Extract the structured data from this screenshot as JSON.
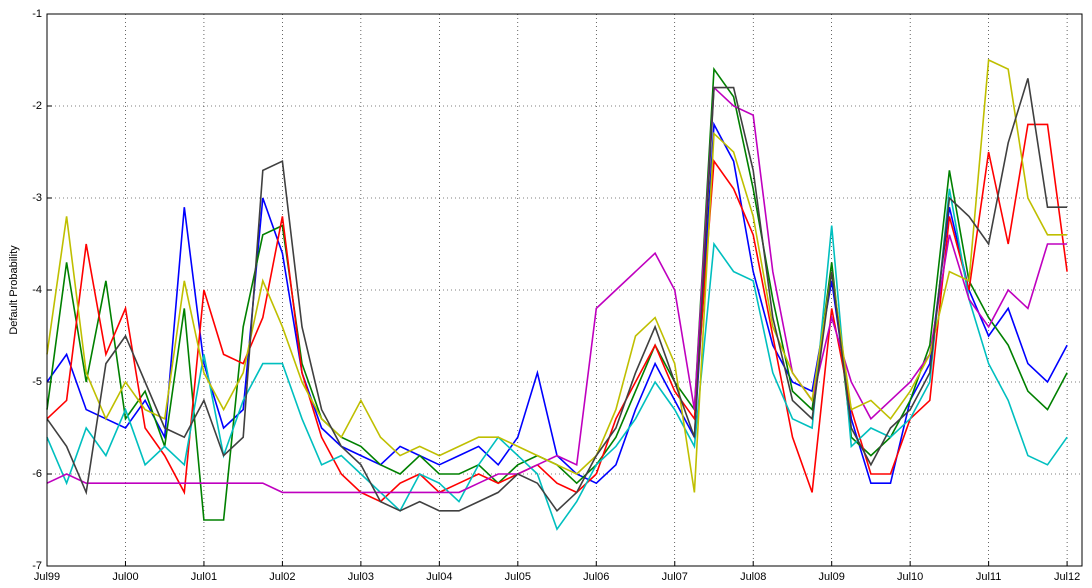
{
  "chart_data": {
    "type": "line",
    "y_label": "Default Probability",
    "x": [
      1999.5,
      1999.75,
      2000,
      2000.25,
      2000.5,
      2000.75,
      2001,
      2001.25,
      2001.5,
      2001.75,
      2002,
      2002.25,
      2002.5,
      2002.75,
      2003,
      2003.25,
      2003.5,
      2003.75,
      2004,
      2004.25,
      2004.5,
      2004.75,
      2005,
      2005.25,
      2005.5,
      2005.75,
      2006,
      2006.25,
      2006.5,
      2006.75,
      2007,
      2007.25,
      2007.5,
      2007.75,
      2008,
      2008.25,
      2008.5,
      2008.75,
      2009,
      2009.25,
      2009.5,
      2009.75,
      2010,
      2010.25,
      2010.5,
      2010.75,
      2011,
      2011.25,
      2011.5,
      2011.75,
      2012,
      2012.25,
      2012.5
    ],
    "series": [
      {
        "color": "#0000ff",
        "values": [
          -5.0,
          -4.7,
          -5.3,
          -5.4,
          -5.5,
          -5.2,
          -5.6,
          -3.1,
          -4.8,
          -5.5,
          -5.3,
          -3.0,
          -3.6,
          -4.9,
          -5.5,
          -5.7,
          -5.8,
          -5.9,
          -5.7,
          -5.8,
          -5.9,
          -5.8,
          -5.7,
          -5.9,
          -5.6,
          -4.9,
          -5.8,
          -6.0,
          -6.1,
          -5.9,
          -5.3,
          -4.8,
          -5.2,
          -5.6,
          -2.2,
          -2.6,
          -3.8,
          -4.6,
          -5.0,
          -5.1,
          -3.9,
          -5.4,
          -6.1,
          -6.1,
          -5.2,
          -4.8,
          -3.1,
          -4.0,
          -4.5,
          -4.2,
          -4.8,
          -5.0,
          -4.6
        ]
      },
      {
        "color": "#008000",
        "values": [
          -5.3,
          -3.7,
          -5.0,
          -3.9,
          -5.4,
          -5.1,
          -5.7,
          -4.2,
          -6.5,
          -6.5,
          -4.4,
          -3.4,
          -3.3,
          -4.8,
          -5.4,
          -5.6,
          -5.7,
          -5.9,
          -6.0,
          -5.8,
          -6.0,
          -6.0,
          -5.9,
          -6.1,
          -5.9,
          -5.8,
          -5.9,
          -6.1,
          -5.9,
          -5.6,
          -5.1,
          -4.6,
          -5.0,
          -5.3,
          -1.6,
          -1.9,
          -2.9,
          -4.1,
          -5.1,
          -5.3,
          -3.7,
          -5.6,
          -5.8,
          -5.6,
          -5.2,
          -4.6,
          -2.7,
          -3.9,
          -4.3,
          -4.6,
          -5.1,
          -5.3,
          -4.9
        ]
      },
      {
        "color": "#ff0000",
        "values": [
          -5.4,
          -5.2,
          -3.5,
          -4.7,
          -4.2,
          -5.5,
          -5.8,
          -6.2,
          -4.0,
          -4.7,
          -4.8,
          -4.3,
          -3.2,
          -4.9,
          -5.6,
          -6.0,
          -6.2,
          -6.3,
          -6.1,
          -6.0,
          -6.2,
          -6.1,
          -6.0,
          -6.1,
          -6.0,
          -5.9,
          -6.1,
          -6.2,
          -6.0,
          -5.4,
          -5.0,
          -4.6,
          -5.1,
          -5.4,
          -2.6,
          -2.9,
          -3.4,
          -4.5,
          -5.6,
          -6.2,
          -4.2,
          -5.3,
          -6.0,
          -6.0,
          -5.4,
          -5.2,
          -3.2,
          -4.0,
          -2.5,
          -3.5,
          -2.2,
          -2.2,
          -3.8
        ]
      },
      {
        "color": "#00bfbf",
        "values": [
          -5.6,
          -6.1,
          -5.5,
          -5.8,
          -5.3,
          -5.9,
          -5.7,
          -5.9,
          -4.7,
          -5.8,
          -5.2,
          -4.8,
          -4.8,
          -5.4,
          -5.9,
          -5.8,
          -6.0,
          -6.2,
          -6.4,
          -6.0,
          -6.1,
          -6.3,
          -5.9,
          -5.6,
          -5.8,
          -6.0,
          -6.6,
          -6.3,
          -5.9,
          -5.7,
          -5.4,
          -5.0,
          -5.3,
          -5.7,
          -3.5,
          -3.8,
          -3.9,
          -4.9,
          -5.4,
          -5.5,
          -3.3,
          -5.7,
          -5.5,
          -5.6,
          -5.4,
          -5.0,
          -2.9,
          -4.1,
          -4.8,
          -5.2,
          -5.8,
          -5.9,
          -5.6
        ]
      },
      {
        "color": "#bf00bf",
        "values": [
          -6.1,
          -6.0,
          -6.1,
          -6.1,
          -6.1,
          -6.1,
          -6.1,
          -6.1,
          -6.1,
          -6.1,
          -6.1,
          -6.1,
          -6.2,
          -6.2,
          -6.2,
          -6.2,
          -6.2,
          -6.2,
          -6.2,
          -6.2,
          -6.2,
          -6.2,
          -6.1,
          -6.0,
          -6.0,
          -5.9,
          -5.8,
          -5.9,
          -4.2,
          -4.0,
          -3.8,
          -3.6,
          -4.0,
          -5.3,
          -1.8,
          -2.0,
          -2.1,
          -3.8,
          -4.9,
          -5.2,
          -4.3,
          -5.0,
          -5.4,
          -5.2,
          -5.0,
          -4.7,
          -3.4,
          -4.1,
          -4.4,
          -4.0,
          -4.2,
          -3.5,
          -3.5
        ]
      },
      {
        "color": "#bfbf00",
        "values": [
          -4.7,
          -3.2,
          -4.9,
          -5.4,
          -5.0,
          -5.3,
          -5.4,
          -3.9,
          -4.9,
          -5.3,
          -4.9,
          -3.9,
          -4.4,
          -5.0,
          -5.4,
          -5.6,
          -5.2,
          -5.6,
          -5.8,
          -5.7,
          -5.8,
          -5.7,
          -5.6,
          -5.6,
          -5.7,
          -5.8,
          -5.9,
          -6.0,
          -5.8,
          -5.3,
          -4.5,
          -4.3,
          -4.8,
          -6.2,
          -2.3,
          -2.5,
          -3.2,
          -4.4,
          -4.9,
          -5.2,
          -3.8,
          -5.3,
          -5.2,
          -5.4,
          -5.1,
          -4.7,
          -3.8,
          -3.9,
          -1.5,
          -1.6,
          -3.0,
          -3.4,
          -3.4
        ]
      },
      {
        "color": "#404040",
        "values": [
          -5.4,
          -5.7,
          -6.2,
          -4.8,
          -4.5,
          -5.0,
          -5.5,
          -5.6,
          -5.2,
          -5.8,
          -5.6,
          -2.7,
          -2.6,
          -4.4,
          -5.3,
          -5.7,
          -5.9,
          -6.3,
          -6.4,
          -6.3,
          -6.4,
          -6.4,
          -6.3,
          -6.2,
          -6.0,
          -6.1,
          -6.4,
          -6.2,
          -5.8,
          -5.5,
          -4.9,
          -4.4,
          -5.0,
          -5.6,
          -1.8,
          -1.8,
          -2.7,
          -4.3,
          -5.2,
          -5.4,
          -3.8,
          -5.5,
          -5.9,
          -5.5,
          -5.3,
          -4.9,
          -3.0,
          -3.2,
          -3.5,
          -2.4,
          -1.7,
          -3.1,
          -3.1
        ]
      }
    ],
    "xlim": [
      1999.5,
      2012.69
    ],
    "xticks": [
      {
        "value": 1999.5,
        "label": "Jul99"
      },
      {
        "value": 2000.5,
        "label": "Jul00"
      },
      {
        "value": 2001.5,
        "label": "Jul01"
      },
      {
        "value": 2002.5,
        "label": "Jul02"
      },
      {
        "value": 2003.5,
        "label": "Jul03"
      },
      {
        "value": 2004.5,
        "label": "Jul04"
      },
      {
        "value": 2005.5,
        "label": "Jul05"
      },
      {
        "value": 2006.5,
        "label": "Jul06"
      },
      {
        "value": 2007.5,
        "label": "Jul07"
      },
      {
        "value": 2008.5,
        "label": "Jul08"
      },
      {
        "value": 2009.5,
        "label": "Jul09"
      },
      {
        "value": 2010.5,
        "label": "Jul10"
      },
      {
        "value": 2011.5,
        "label": "Jul11"
      },
      {
        "value": 2012.5,
        "label": "Jul12"
      }
    ],
    "ylim": [
      -7,
      -1
    ],
    "yticks": [
      -7,
      -6,
      -5,
      -4,
      -3,
      -2,
      -1
    ],
    "grid": true
  }
}
